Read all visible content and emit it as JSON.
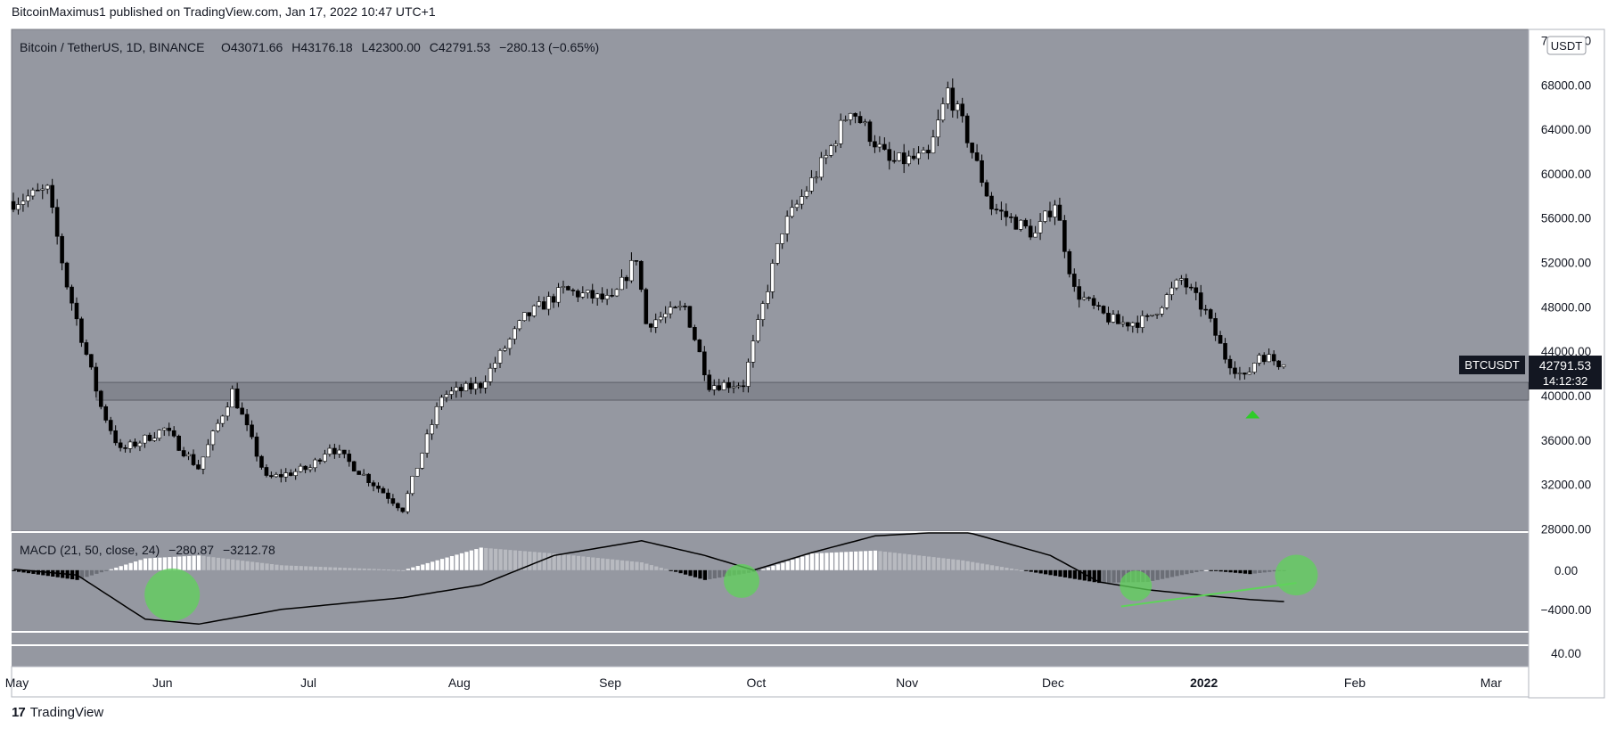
{
  "header": {
    "publisher_line": "BitcoinMaximus1 published on TradingView.com, Jan 17, 2022 10:47 UTC+1"
  },
  "legend": {
    "symbol": "Bitcoin / TetherUS, 1D, BINANCE",
    "o_label": "O",
    "o_value": "43071.66",
    "h_label": "H",
    "h_value": "43176.18",
    "l_label": "L",
    "l_value": "42300.00",
    "c_label": "C",
    "c_value": "42791.53",
    "change": "−280.13 (−0.65%)"
  },
  "currency_badge": "USDT",
  "price_tag": {
    "symbol": "BTCUSDT",
    "price": "42791.53",
    "countdown": "14:12:32"
  },
  "macd_legend": {
    "name": "MACD (21, 50, close, 24)",
    "v1": "−280.87",
    "v2": "−3212.78"
  },
  "footer": {
    "brand_mark": "17",
    "brand": "TradingView"
  },
  "colors": {
    "chart_bg": "#9598a1",
    "up_candle": "#ffffff",
    "down_candle": "#000000",
    "support_zone": "#7c7f88",
    "highlight_green": "#5fd35a",
    "text": "#131722",
    "axis_bg": "#ffffff"
  },
  "chart_data": [
    {
      "type": "candlestick",
      "symbol": "BTCUSDT",
      "timeframe": "1D",
      "x_ticks": [
        "May",
        "Jun",
        "Jul",
        "Aug",
        "Sep",
        "Oct",
        "Nov",
        "Dec",
        "2022",
        "Feb",
        "Mar"
      ],
      "x_tick_dates": [
        "2021-05-01",
        "2021-06-01",
        "2021-07-01",
        "2021-08-01",
        "2021-09-01",
        "2021-10-01",
        "2021-11-01",
        "2021-12-01",
        "2022-01-01",
        "2022-02-01",
        "2022-03-01"
      ],
      "y_ticks": [
        28000,
        32000,
        36000,
        40000,
        44000,
        48000,
        52000,
        56000,
        60000,
        64000,
        68000,
        72000
      ],
      "y_tick_labels": [
        "28000.00",
        "32000.00",
        "36000.00",
        "40000.00",
        "44000.00",
        "48000.00",
        "52000.00",
        "56000.00",
        "60000.00",
        "64000.00",
        "68000.00",
        "72000.00"
      ],
      "ylim": [
        27800,
        73000
      ],
      "last_price": 42791.53,
      "support_zone": [
        39600,
        41200
      ],
      "keypoints": [
        {
          "date": "2021-05-01",
          "close": 57500
        },
        {
          "date": "2021-05-08",
          "close": 58500
        },
        {
          "date": "2021-05-12",
          "close": 50000
        },
        {
          "date": "2021-05-19",
          "close": 39000
        },
        {
          "date": "2021-05-23",
          "close": 35000
        },
        {
          "date": "2021-06-01",
          "close": 37000
        },
        {
          "date": "2021-06-08",
          "close": 33500
        },
        {
          "date": "2021-06-15",
          "close": 40400
        },
        {
          "date": "2021-06-22",
          "close": 32500
        },
        {
          "date": "2021-07-01",
          "close": 33500
        },
        {
          "date": "2021-07-05",
          "close": 35500
        },
        {
          "date": "2021-07-20",
          "close": 29800
        },
        {
          "date": "2021-07-28",
          "close": 40000
        },
        {
          "date": "2021-08-05",
          "close": 41000
        },
        {
          "date": "2021-08-14",
          "close": 47000
        },
        {
          "date": "2021-08-22",
          "close": 49500
        },
        {
          "date": "2021-09-01",
          "close": 48500
        },
        {
          "date": "2021-09-06",
          "close": 52500
        },
        {
          "date": "2021-09-08",
          "close": 46500
        },
        {
          "date": "2021-09-16",
          "close": 48000
        },
        {
          "date": "2021-09-21",
          "close": 41000
        },
        {
          "date": "2021-09-28",
          "close": 41100
        },
        {
          "date": "2021-10-06",
          "close": 55000
        },
        {
          "date": "2021-10-15",
          "close": 61500
        },
        {
          "date": "2021-10-20",
          "close": 66000
        },
        {
          "date": "2021-10-28",
          "close": 61000
        },
        {
          "date": "2021-11-05",
          "close": 61500
        },
        {
          "date": "2021-11-09",
          "close": 67500
        },
        {
          "date": "2021-11-12",
          "close": 64500
        },
        {
          "date": "2021-11-18",
          "close": 57000
        },
        {
          "date": "2021-11-27",
          "close": 54500
        },
        {
          "date": "2021-12-01",
          "close": 57500
        },
        {
          "date": "2021-12-03",
          "close": 53500
        },
        {
          "date": "2021-12-05",
          "close": 49500
        },
        {
          "date": "2021-12-10",
          "close": 47500
        },
        {
          "date": "2021-12-14",
          "close": 46500
        },
        {
          "date": "2021-12-20",
          "close": 46800
        },
        {
          "date": "2021-12-27",
          "close": 50500
        },
        {
          "date": "2022-01-01",
          "close": 47500
        },
        {
          "date": "2022-01-05",
          "close": 43500
        },
        {
          "date": "2022-01-09",
          "close": 41500
        },
        {
          "date": "2022-01-12",
          "close": 43800
        },
        {
          "date": "2022-01-17",
          "close": 42791.53
        }
      ]
    },
    {
      "type": "histogram",
      "name": "MACD (21, 50, close, 24)",
      "values_shown": [
        -280.87,
        -3212.78
      ],
      "y_ticks": [
        0,
        -4000
      ],
      "y_tick_labels": [
        "0.00",
        "−4000.00"
      ],
      "ylim": [
        -6200,
        3800
      ],
      "keypoints": [
        {
          "date": "2021-05-01",
          "macd": 0,
          "signal": 100
        },
        {
          "date": "2021-05-14",
          "macd": -1500,
          "signal": -500
        },
        {
          "date": "2021-05-28",
          "macd": -3800,
          "signal": -5000
        },
        {
          "date": "2021-06-08",
          "macd": -4000,
          "signal": -5500
        },
        {
          "date": "2021-06-25",
          "macd": -3500,
          "signal": -4000
        },
        {
          "date": "2021-07-20",
          "macd": -2800,
          "signal": -2800
        },
        {
          "date": "2021-08-05",
          "macd": 800,
          "signal": -1500
        },
        {
          "date": "2021-08-20",
          "macd": 3200,
          "signal": 1500
        },
        {
          "date": "2021-09-07",
          "macd": 3800,
          "signal": 3000
        },
        {
          "date": "2021-09-20",
          "macd": 500,
          "signal": 1500
        },
        {
          "date": "2021-09-30",
          "macd": -200,
          "signal": 0
        },
        {
          "date": "2021-10-12",
          "macd": 3500,
          "signal": 1800
        },
        {
          "date": "2021-10-25",
          "macd": 5500,
          "signal": 3500
        },
        {
          "date": "2021-11-12",
          "macd": 5000,
          "signal": 4000
        },
        {
          "date": "2021-11-30",
          "macd": 1000,
          "signal": 1500
        },
        {
          "date": "2021-12-10",
          "macd": -2500,
          "signal": -1200
        },
        {
          "date": "2021-12-20",
          "macd": -3200,
          "signal": -2000
        },
        {
          "date": "2022-01-01",
          "macd": -2600,
          "signal": -2600
        },
        {
          "date": "2022-01-10",
          "macd": -3400,
          "signal": -3000
        },
        {
          "date": "2022-01-17",
          "macd": -3212.78,
          "signal": -3200
        }
      ]
    },
    {
      "type": "line",
      "name": "lower pane",
      "y_ticks": [
        40
      ],
      "y_tick_labels": [
        "40.00"
      ],
      "ylim": [
        0,
        100
      ]
    }
  ]
}
